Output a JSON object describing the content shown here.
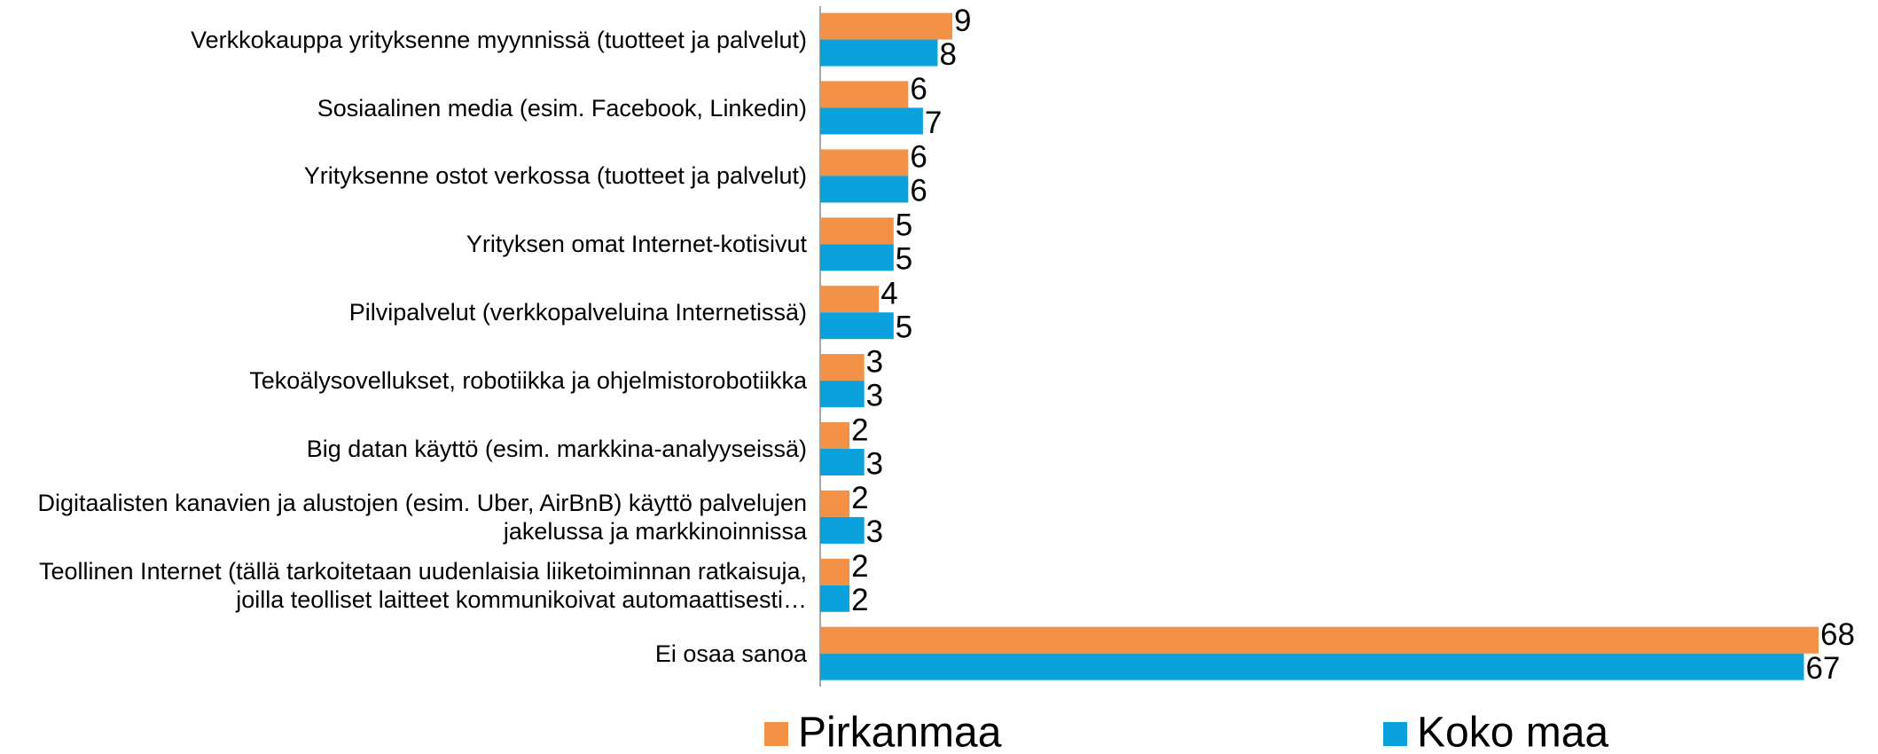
{
  "chart_data": {
    "type": "hbar",
    "categories": [
      "Verkkokauppa yrityksenne myynnissä (tuotteet ja palvelut)",
      "Sosiaalinen media (esim. Facebook, Linkedin)",
      "Yrityksenne ostot verkossa (tuotteet ja palvelut)",
      "Yrityksen omat Internet-kotisivut",
      "Pilvipalvelut  (verkkopalveluina Internetissä)",
      "Tekoälysovellukset, robotiikka ja ohjelmistorobotiikka",
      "Big datan käyttö (esim. markkina-analyyseissä)",
      "Digitaalisten kanavien ja alustojen (esim. Uber, AirBnB) käyttö palvelujen jakelussa ja markkinoinnissa",
      "Teollinen Internet (tällä tarkoitetaan uudenlaisia liiketoiminnan ratkaisuja, joilla teolliset laitteet kommunikoivat automaattisesti…",
      "Ei osaa sanoa"
    ],
    "series": [
      {
        "name": "Pirkanmaa",
        "color": "#f39146",
        "values": [
          9,
          6,
          6,
          5,
          4,
          3,
          2,
          2,
          2,
          68
        ]
      },
      {
        "name": "Koko maa",
        "color": "#0ba1dc",
        "values": [
          8,
          7,
          6,
          5,
          5,
          3,
          3,
          3,
          2,
          67
        ]
      }
    ],
    "legend": "bottom"
  }
}
